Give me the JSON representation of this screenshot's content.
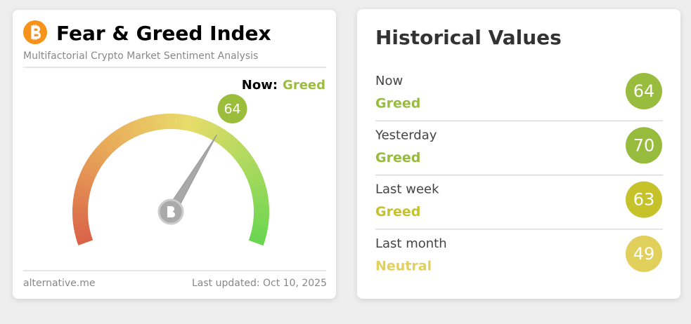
{
  "fear_greed_card": {
    "title": "Fear & Greed Index",
    "subtitle": "Multifactorial Crypto Market Sentiment Analysis",
    "now_label": "Now:",
    "now_status": "Greed",
    "status_color": "#9bbd3f",
    "gauge": {
      "value": 64,
      "range": [
        0,
        100
      ],
      "color": "#9bbd3c"
    },
    "source": "alternative.me",
    "last_updated": "Last updated: Oct 10, 2025"
  },
  "historical_card": {
    "title": "Historical Values",
    "rows": [
      {
        "period": "Now",
        "status": "Greed",
        "value": 64,
        "color": "#98bc3e"
      },
      {
        "period": "Yesterday",
        "status": "Greed",
        "value": 70,
        "color": "#97bb3d"
      },
      {
        "period": "Last week",
        "status": "Greed",
        "value": 63,
        "color": "#c5c22a"
      },
      {
        "period": "Last month",
        "status": "Neutral",
        "value": 49,
        "color": "#e2d05c"
      }
    ]
  }
}
